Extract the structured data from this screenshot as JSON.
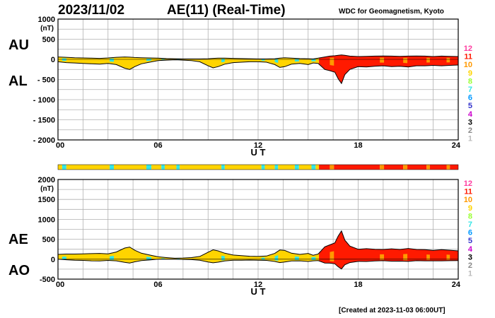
{
  "header": {
    "date": "2023/11/02",
    "title": "AE(11) (Real-Time)",
    "source": "WDC for Geomagnetism, Kyoto"
  },
  "footer": "[Created at 2023-11-03 06:00UT]",
  "labels": {
    "au": "AU",
    "al": "AL",
    "ae": "AE",
    "ao": "AO"
  },
  "legend": {
    "levels": [
      "12",
      "11",
      "10",
      "9",
      "8",
      "7",
      "6",
      "5",
      "4",
      "3",
      "2",
      "1"
    ],
    "colors": [
      "#ff3ca0",
      "#ff1a00",
      "#ff9900",
      "#ffd400",
      "#99ff33",
      "#33e6e6",
      "#0099ff",
      "#3333cc",
      "#cc00cc",
      "#000000",
      "#888888",
      "#bbbbbb"
    ]
  },
  "station_count_bar": [
    {
      "from": 0,
      "to": 0.25,
      "level": "9"
    },
    {
      "from": 0.25,
      "to": 0.5,
      "level": "7"
    },
    {
      "from": 0.5,
      "to": 3.1,
      "level": "9"
    },
    {
      "from": 3.1,
      "to": 3.35,
      "level": "7"
    },
    {
      "from": 3.35,
      "to": 5.3,
      "level": "9"
    },
    {
      "from": 5.3,
      "to": 5.6,
      "level": "7"
    },
    {
      "from": 5.6,
      "to": 6.2,
      "level": "9"
    },
    {
      "from": 6.2,
      "to": 6.4,
      "level": "7"
    },
    {
      "from": 6.4,
      "to": 7.1,
      "level": "9"
    },
    {
      "from": 7.1,
      "to": 7.3,
      "level": "7"
    },
    {
      "from": 7.3,
      "to": 9.8,
      "level": "9"
    },
    {
      "from": 9.8,
      "to": 10.0,
      "level": "7"
    },
    {
      "from": 10.0,
      "to": 12.2,
      "level": "9"
    },
    {
      "from": 12.2,
      "to": 12.4,
      "level": "7"
    },
    {
      "from": 12.4,
      "to": 13.0,
      "level": "9"
    },
    {
      "from": 13.0,
      "to": 13.2,
      "level": "7"
    },
    {
      "from": 13.2,
      "to": 14.2,
      "level": "9"
    },
    {
      "from": 14.2,
      "to": 14.45,
      "level": "7"
    },
    {
      "from": 14.45,
      "to": 15.2,
      "level": "9"
    },
    {
      "from": 15.2,
      "to": 15.45,
      "level": "7"
    },
    {
      "from": 15.45,
      "to": 15.65,
      "level": "9"
    },
    {
      "from": 15.65,
      "to": 16.3,
      "level": "11"
    },
    {
      "from": 16.3,
      "to": 16.55,
      "level": "10"
    },
    {
      "from": 16.55,
      "to": 19.3,
      "level": "11"
    },
    {
      "from": 19.3,
      "to": 19.55,
      "level": "10"
    },
    {
      "from": 19.55,
      "to": 20.7,
      "level": "11"
    },
    {
      "from": 20.7,
      "to": 20.95,
      "level": "10"
    },
    {
      "from": 20.95,
      "to": 22.1,
      "level": "11"
    },
    {
      "from": 22.1,
      "to": 22.3,
      "level": "10"
    },
    {
      "from": 22.3,
      "to": 23.3,
      "level": "11"
    },
    {
      "from": 23.3,
      "to": 23.5,
      "level": "10"
    },
    {
      "from": 23.5,
      "to": 24,
      "level": "11"
    }
  ],
  "chart_data": [
    {
      "type": "area",
      "name": "AU/AL",
      "xlabel": "U T",
      "ylabel": "(nT)",
      "xlim": [
        0,
        24
      ],
      "ylim": [
        -2000,
        1000
      ],
      "xticks": [
        "00",
        "06",
        "12",
        "18",
        "24"
      ],
      "yticks": [
        "1000",
        "500",
        "0",
        "- 500",
        "- 1000",
        "- 1500",
        "- 2000"
      ],
      "x": [
        0,
        0.5,
        1,
        1.5,
        2,
        2.5,
        3,
        3.5,
        4,
        4.3,
        4.6,
        5,
        5.5,
        6,
        6.5,
        7,
        7.5,
        8,
        8.5,
        9,
        9.3,
        9.6,
        10,
        10.5,
        11,
        11.5,
        12,
        12.5,
        13,
        13.3,
        13.6,
        14,
        14.5,
        15,
        15.3,
        15.6,
        16,
        16.3,
        16.6,
        16.8,
        17,
        17.2,
        17.5,
        18,
        18.5,
        19,
        19.5,
        20,
        20.5,
        21,
        21.5,
        22,
        22.5,
        23,
        23.5,
        24
      ],
      "au": [
        60,
        50,
        40,
        35,
        30,
        25,
        35,
        50,
        60,
        55,
        45,
        40,
        35,
        30,
        20,
        15,
        10,
        10,
        10,
        15,
        25,
        30,
        30,
        25,
        20,
        15,
        10,
        10,
        15,
        30,
        40,
        30,
        20,
        15,
        10,
        30,
        60,
        80,
        90,
        100,
        110,
        100,
        80,
        70,
        75,
        80,
        85,
        80,
        75,
        80,
        85,
        80,
        70,
        80,
        75,
        70
      ],
      "al": [
        -60,
        -80,
        -90,
        -100,
        -110,
        -120,
        -100,
        -130,
        -220,
        -250,
        -180,
        -110,
        -70,
        -30,
        -20,
        -10,
        -20,
        -30,
        -60,
        -160,
        -210,
        -180,
        -120,
        -80,
        -70,
        -60,
        -60,
        -70,
        -130,
        -200,
        -180,
        -120,
        -100,
        -130,
        -90,
        -100,
        -250,
        -280,
        -320,
        -480,
        -600,
        -380,
        -250,
        -180,
        -190,
        -170,
        -160,
        -180,
        -170,
        -190,
        -160,
        -160,
        -150,
        -160,
        -150,
        -140
      ],
      "ae_levels": [
        {
          "from": 0,
          "to": 15.65,
          "level": "9"
        },
        {
          "from": 15.65,
          "to": 24,
          "level": "11"
        }
      ]
    },
    {
      "type": "area",
      "name": "AE/AO",
      "xlabel": "U T",
      "ylabel": "(nT)",
      "xlim": [
        0,
        24
      ],
      "ylim": [
        -500,
        2000
      ],
      "xticks": [
        "00",
        "06",
        "12",
        "18",
        "24"
      ],
      "yticks": [
        "2000",
        "1500",
        "1000",
        "500",
        "0",
        "-500"
      ],
      "x": [
        0,
        0.5,
        1,
        1.5,
        2,
        2.5,
        3,
        3.5,
        4,
        4.3,
        4.6,
        5,
        5.5,
        6,
        6.5,
        7,
        7.5,
        8,
        8.5,
        9,
        9.3,
        9.6,
        10,
        10.5,
        11,
        11.5,
        12,
        12.5,
        13,
        13.3,
        13.6,
        14,
        14.5,
        15,
        15.3,
        15.6,
        16,
        16.3,
        16.6,
        16.8,
        17,
        17.2,
        17.5,
        18,
        18.5,
        19,
        19.5,
        20,
        20.5,
        21,
        21.5,
        22,
        22.5,
        23,
        23.5,
        24
      ],
      "ae": [
        120,
        130,
        130,
        135,
        140,
        145,
        135,
        180,
        280,
        305,
        225,
        150,
        105,
        60,
        40,
        25,
        30,
        40,
        70,
        175,
        235,
        210,
        150,
        105,
        90,
        75,
        70,
        80,
        145,
        230,
        220,
        150,
        120,
        145,
        100,
        130,
        310,
        360,
        410,
        580,
        710,
        480,
        330,
        250,
        265,
        250,
        245,
        260,
        245,
        270,
        245,
        240,
        220,
        240,
        225,
        210
      ],
      "ao": [
        0,
        -15,
        -25,
        -30,
        -40,
        -45,
        -30,
        -40,
        -80,
        -95,
        -65,
        -35,
        -20,
        0,
        0,
        2,
        -5,
        -10,
        -25,
        -70,
        -90,
        -75,
        -45,
        -25,
        -25,
        -22,
        -25,
        -30,
        -57,
        -85,
        -70,
        -45,
        -40,
        -57,
        -40,
        -35,
        -95,
        -100,
        -115,
        -190,
        -245,
        -140,
        -85,
        -55,
        -57,
        -45,
        -37,
        -50,
        -47,
        -55,
        -37,
        -40,
        -40,
        -40,
        -37,
        -35
      ]
    }
  ]
}
